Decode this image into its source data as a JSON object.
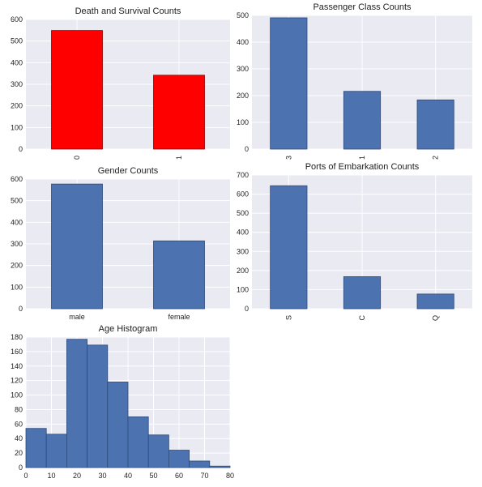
{
  "colors": {
    "panel_bg": "#eaeaf2",
    "grid": "#ffffff",
    "bar_default": "#4c72b0",
    "bar_edge": "#2d4a7a",
    "bar_red": "#ff0000",
    "bar_red_edge": "#8b0000"
  },
  "chart_data": [
    {
      "type": "bar",
      "title": "Death and Survival Counts",
      "categories": [
        "0",
        "1"
      ],
      "values": [
        549,
        342
      ],
      "ylim": [
        0,
        600
      ],
      "yticks": [
        0,
        100,
        200,
        300,
        400,
        500,
        600
      ],
      "xtick_rotation": "vertical",
      "bar_color": "#ff0000",
      "grid": true
    },
    {
      "type": "bar",
      "title": "Passenger Class Counts",
      "categories": [
        "3",
        "1",
        "2"
      ],
      "values": [
        491,
        216,
        184
      ],
      "ylim": [
        0,
        500
      ],
      "yticks": [
        0,
        100,
        200,
        300,
        400,
        500
      ],
      "xtick_rotation": "vertical",
      "bar_color": "#4c72b0",
      "grid": true
    },
    {
      "type": "bar",
      "title": "Gender Counts",
      "categories": [
        "male",
        "female"
      ],
      "values": [
        577,
        314
      ],
      "ylim": [
        0,
        600
      ],
      "yticks": [
        0,
        100,
        200,
        300,
        400,
        500,
        600
      ],
      "xtick_rotation": "horizontal",
      "bar_color": "#4c72b0",
      "grid": true
    },
    {
      "type": "bar",
      "title": "Ports of Embarkation Counts",
      "categories": [
        "S",
        "C",
        "Q"
      ],
      "values": [
        644,
        168,
        77
      ],
      "ylim": [
        0,
        700
      ],
      "yticks": [
        0,
        100,
        200,
        300,
        400,
        500,
        600,
        700
      ],
      "xtick_rotation": "vertical",
      "bar_color": "#4c72b0",
      "grid": true
    },
    {
      "type": "histogram",
      "title": "Age Histogram",
      "bin_edges": [
        0,
        8,
        16,
        24,
        32,
        40,
        48,
        56,
        64,
        72,
        80
      ],
      "values": [
        54,
        46,
        177,
        169,
        118,
        70,
        45,
        24,
        9,
        2
      ],
      "xlim": [
        0,
        80
      ],
      "ylim": [
        0,
        180
      ],
      "xticks": [
        0,
        10,
        20,
        30,
        40,
        50,
        60,
        70,
        80
      ],
      "yticks": [
        0,
        20,
        40,
        60,
        80,
        100,
        120,
        140,
        160,
        180
      ],
      "bar_color": "#4c72b0",
      "grid": true
    }
  ]
}
